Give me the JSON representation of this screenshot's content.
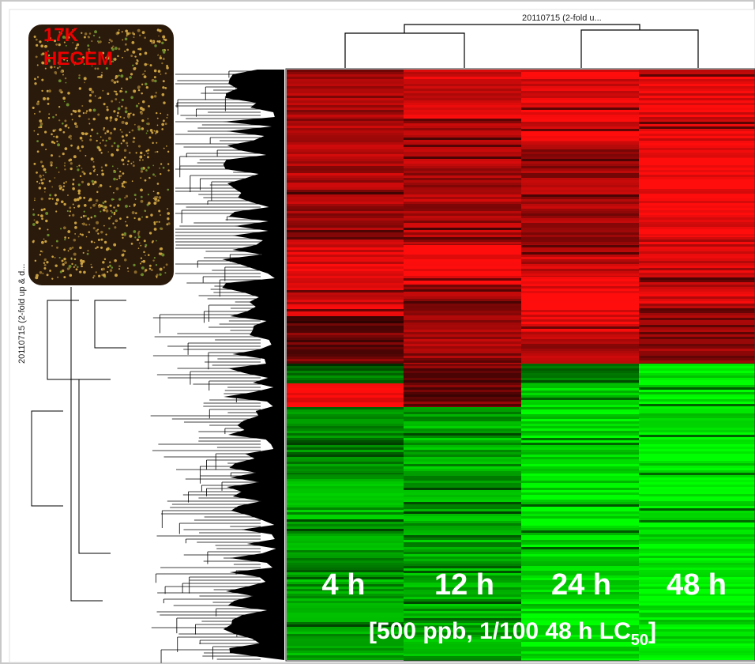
{
  "top_label": "20110715 (2-fold u...",
  "side_label": "20110715 (2-fold up & d...",
  "inset": {
    "line1": "17K",
    "line2": "HEGEM"
  },
  "columns": [
    "4 h",
    "12 h",
    "24 h",
    "48 h"
  ],
  "condition": {
    "text": "[500 ppb, 1/100 48 h LC",
    "subscript": "50",
    "close": "]"
  }
}
